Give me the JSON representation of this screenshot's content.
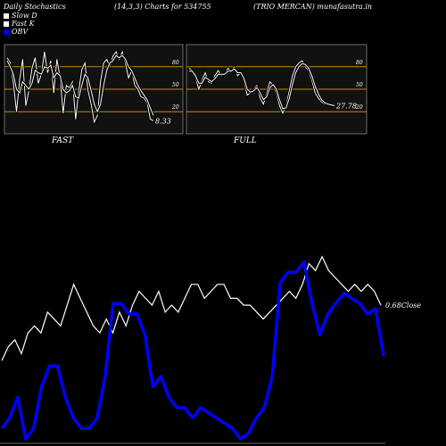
{
  "header": {
    "left": "Daily Stochastics",
    "params": "(14,3,3) Charts for 534755",
    "right": "(TRIO MERCAN) munafasutra.in"
  },
  "legend": [
    {
      "label": "Slow  D",
      "color": "#ffffff"
    },
    {
      "label": "Fast  K",
      "color": "#ffffff"
    },
    {
      "label": "OBV",
      "color": "#0000ff"
    }
  ],
  "colors": {
    "band": "#cc8800",
    "obv": "#0000ff",
    "price": "#ffffff",
    "panel_bg": "#111111"
  },
  "chart_data": [
    {
      "type": "line",
      "title": "FAST",
      "ylim": [
        0,
        100
      ],
      "ticks": [
        20,
        50,
        80
      ],
      "end_label": "8.33",
      "series": [
        {
          "name": "Fast K",
          "values": [
            92,
            85,
            58,
            20,
            62,
            90,
            28,
            48,
            78,
            92,
            58,
            70,
            100,
            72,
            88,
            45,
            90,
            66,
            18,
            55,
            52,
            60,
            10,
            48,
            76,
            85,
            48,
            30,
            6,
            15,
            60,
            85,
            90,
            80,
            94,
            100,
            90,
            100,
            85,
            65,
            75,
            55,
            50,
            40,
            38,
            32,
            10,
            8
          ]
        },
        {
          "name": "Slow D",
          "values": [
            88,
            80,
            70,
            50,
            45,
            60,
            55,
            50,
            58,
            75,
            72,
            70,
            80,
            78,
            82,
            65,
            72,
            68,
            50,
            45,
            48,
            55,
            40,
            38,
            55,
            70,
            65,
            48,
            30,
            20,
            30,
            55,
            75,
            85,
            88,
            95,
            92,
            95,
            90,
            80,
            75,
            65,
            55,
            48,
            42,
            36,
            25,
            15
          ]
        }
      ]
    },
    {
      "type": "line",
      "title": "FULL",
      "ylim": [
        0,
        100
      ],
      "ticks": [
        20,
        50,
        80
      ],
      "end_label": "27.78",
      "series": [
        {
          "name": "Full K",
          "values": [
            78,
            75,
            65,
            50,
            62,
            72,
            60,
            58,
            68,
            75,
            68,
            70,
            78,
            74,
            80,
            68,
            72,
            60,
            42,
            45,
            50,
            55,
            38,
            30,
            45,
            60,
            55,
            45,
            28,
            18,
            28,
            48,
            68,
            80,
            85,
            88,
            80,
            75,
            62,
            45,
            38,
            33,
            30,
            30,
            28,
            27.78
          ]
        },
        {
          "name": "Full D",
          "values": [
            74,
            74,
            68,
            58,
            58,
            66,
            63,
            60,
            64,
            70,
            70,
            70,
            74,
            74,
            77,
            72,
            72,
            64,
            50,
            46,
            48,
            52,
            45,
            36,
            40,
            52,
            56,
            50,
            36,
            24,
            25,
            38,
            56,
            72,
            80,
            84,
            83,
            78,
            68,
            54,
            44,
            36,
            32,
            30,
            29,
            28
          ]
        }
      ]
    },
    {
      "type": "line",
      "title": "",
      "end_label": "0.68Close",
      "series": [
        {
          "name": "Close",
          "values": [
            0.52,
            0.56,
            0.58,
            0.54,
            0.6,
            0.62,
            0.6,
            0.66,
            0.64,
            0.62,
            0.68,
            0.74,
            0.7,
            0.66,
            0.62,
            0.6,
            0.64,
            0.6,
            0.66,
            0.62,
            0.68,
            0.72,
            0.7,
            0.68,
            0.72,
            0.66,
            0.68,
            0.66,
            0.7,
            0.74,
            0.74,
            0.7,
            0.72,
            0.74,
            0.74,
            0.7,
            0.7,
            0.68,
            0.68,
            0.66,
            0.64,
            0.66,
            0.68,
            0.7,
            0.72,
            0.7,
            0.74,
            0.8,
            0.78,
            0.82,
            0.78,
            0.76,
            0.74,
            0.72,
            0.74,
            0.72,
            0.74,
            0.72,
            0.68
          ]
        },
        {
          "name": "OBV",
          "values": [
            -4,
            -2,
            2,
            -6,
            -4,
            4,
            8,
            8,
            2,
            -2,
            -4,
            -4,
            -2,
            6,
            20,
            20,
            18,
            18,
            14,
            4,
            6,
            2,
            0,
            0,
            -2,
            0,
            -1,
            -2,
            -3,
            -4,
            -6,
            -5,
            -2,
            0,
            6,
            24,
            26,
            26,
            28,
            20,
            14,
            18,
            20,
            22,
            21,
            20,
            18,
            19,
            10
          ]
        }
      ]
    }
  ]
}
